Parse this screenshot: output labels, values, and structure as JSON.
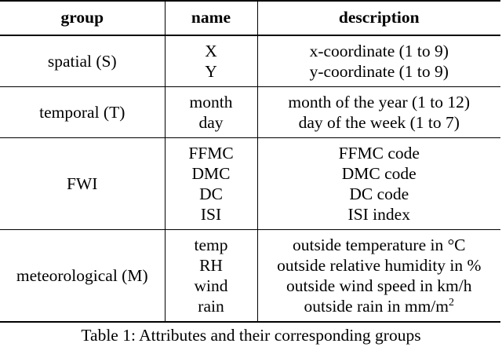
{
  "table": {
    "headers": {
      "group": "group",
      "name": "name",
      "description": "description"
    },
    "groups": [
      {
        "group": "spatial (S)",
        "names": [
          "X",
          "Y"
        ],
        "descriptions": [
          "x-coordinate (1 to 9)",
          "y-coordinate (1 to 9)"
        ]
      },
      {
        "group": "temporal (T)",
        "names": [
          "month",
          "day"
        ],
        "descriptions": [
          "month of the year (1 to 12)",
          "day of the week (1 to 7)"
        ]
      },
      {
        "group": "FWI",
        "names": [
          "FFMC",
          "DMC",
          "DC",
          "ISI"
        ],
        "descriptions": [
          "FFMC code",
          "DMC code",
          "DC code",
          "ISI index"
        ]
      },
      {
        "group": "meteorological (M)",
        "names": [
          "temp",
          "RH",
          "wind",
          "rain"
        ],
        "descriptions": [
          "outside temperature in °C",
          "outside relative humidity in %",
          "outside wind speed in km/h",
          "outside rain in mm/m"
        ],
        "rain_unit_exponent": "2"
      }
    ]
  },
  "caption": "Table 1: Attributes and their corresponding groups"
}
